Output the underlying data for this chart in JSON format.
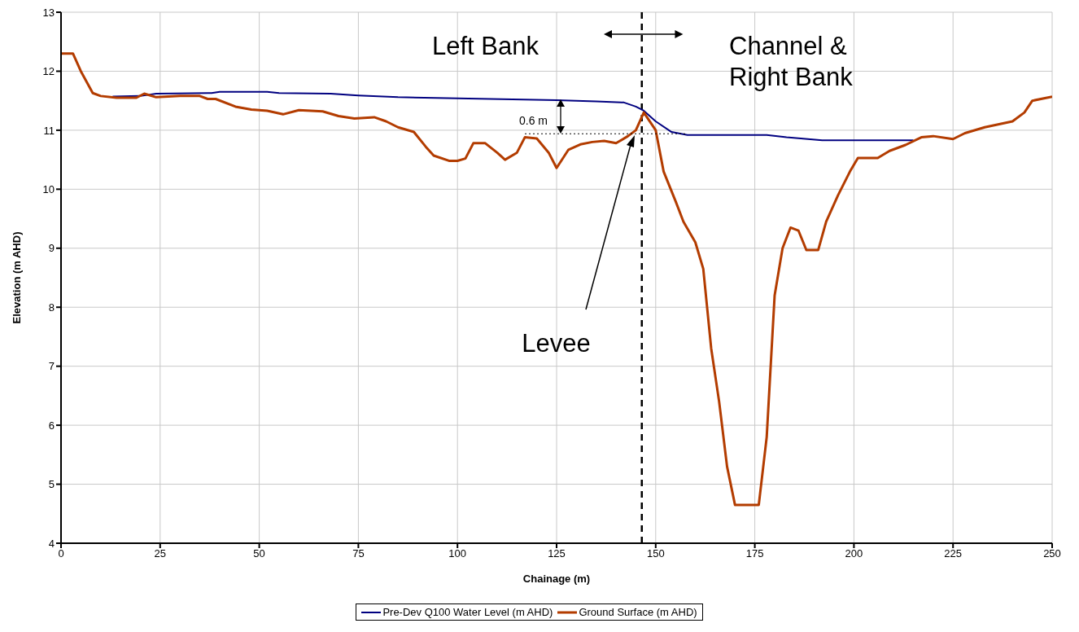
{
  "chart_data": {
    "type": "line",
    "xlabel": "Chainage (m)",
    "ylabel": "Elevation (m AHD)",
    "xlim": [
      0,
      250
    ],
    "xticks": [
      0,
      25,
      50,
      75,
      100,
      125,
      150,
      175,
      200,
      225,
      250
    ],
    "ylim": [
      4,
      13
    ],
    "yticks": [
      4,
      5,
      6,
      7,
      8,
      9,
      10,
      11,
      12,
      13
    ],
    "grid": true,
    "legend": "bottom",
    "line_style": "solid",
    "marker": "none",
    "series": [
      {
        "name": "Pre-Dev Q100 Water Level (m AHD)",
        "color": "#000080",
        "x": [
          13,
          20,
          24,
          38,
          40,
          52,
          55,
          68,
          75,
          85,
          100,
          125,
          135,
          142,
          145,
          147,
          150,
          154,
          158,
          178,
          183,
          192,
          215
        ],
        "values": [
          11.57,
          11.58,
          11.62,
          11.63,
          11.65,
          11.65,
          11.63,
          11.62,
          11.59,
          11.56,
          11.54,
          11.51,
          11.49,
          11.47,
          11.4,
          11.33,
          11.15,
          10.97,
          10.92,
          10.92,
          10.88,
          10.83,
          10.83
        ]
      },
      {
        "name": "Ground Surface (m AHD)",
        "color": "#b33c00",
        "x": [
          0,
          3,
          5,
          8,
          10,
          14,
          19,
          21,
          24,
          30,
          35,
          37,
          39,
          44,
          48,
          52,
          56,
          60,
          66,
          70,
          74,
          79,
          82,
          85,
          89,
          92,
          94,
          98,
          100,
          102,
          104,
          107,
          110,
          112,
          115,
          117,
          120,
          123,
          125,
          128,
          131,
          134,
          137,
          140,
          143,
          145,
          147,
          150,
          152,
          155,
          157,
          160,
          162,
          164,
          166,
          168,
          170,
          176,
          178,
          180,
          182,
          184,
          186,
          188,
          191,
          193,
          196,
          199,
          201,
          206,
          209,
          213,
          217,
          220,
          225,
          228,
          233,
          240,
          243,
          245,
          250
        ],
        "values": [
          12.3,
          12.3,
          12.0,
          11.63,
          11.58,
          11.55,
          11.55,
          11.62,
          11.56,
          11.58,
          11.58,
          11.53,
          11.53,
          11.4,
          11.35,
          11.33,
          11.27,
          11.34,
          11.32,
          11.24,
          11.2,
          11.22,
          11.15,
          11.05,
          10.97,
          10.72,
          10.57,
          10.48,
          10.48,
          10.52,
          10.78,
          10.78,
          10.62,
          10.5,
          10.62,
          10.88,
          10.86,
          10.62,
          10.36,
          10.67,
          10.76,
          10.8,
          10.82,
          10.78,
          10.9,
          11.0,
          11.3,
          11.0,
          10.3,
          9.8,
          9.45,
          9.1,
          8.65,
          7.3,
          6.4,
          5.3,
          4.65,
          4.65,
          5.8,
          8.2,
          9.0,
          9.35,
          9.3,
          8.97,
          8.97,
          9.45,
          9.9,
          10.3,
          10.53,
          10.53,
          10.65,
          10.75,
          10.88,
          10.9,
          10.85,
          10.95,
          11.05,
          11.15,
          11.3,
          11.5,
          11.57
        ]
      }
    ],
    "ref_lines": [
      {
        "axis": "x",
        "value": 146.5,
        "line_style": "dashed",
        "color": "#000000"
      },
      {
        "axis": "y",
        "value": 10.94,
        "label": "0.6 m",
        "line_style": "dotted",
        "color": "#000000"
      }
    ],
    "annotations": [
      "Left Bank",
      "Channel & Right Bank",
      "Levee"
    ]
  }
}
